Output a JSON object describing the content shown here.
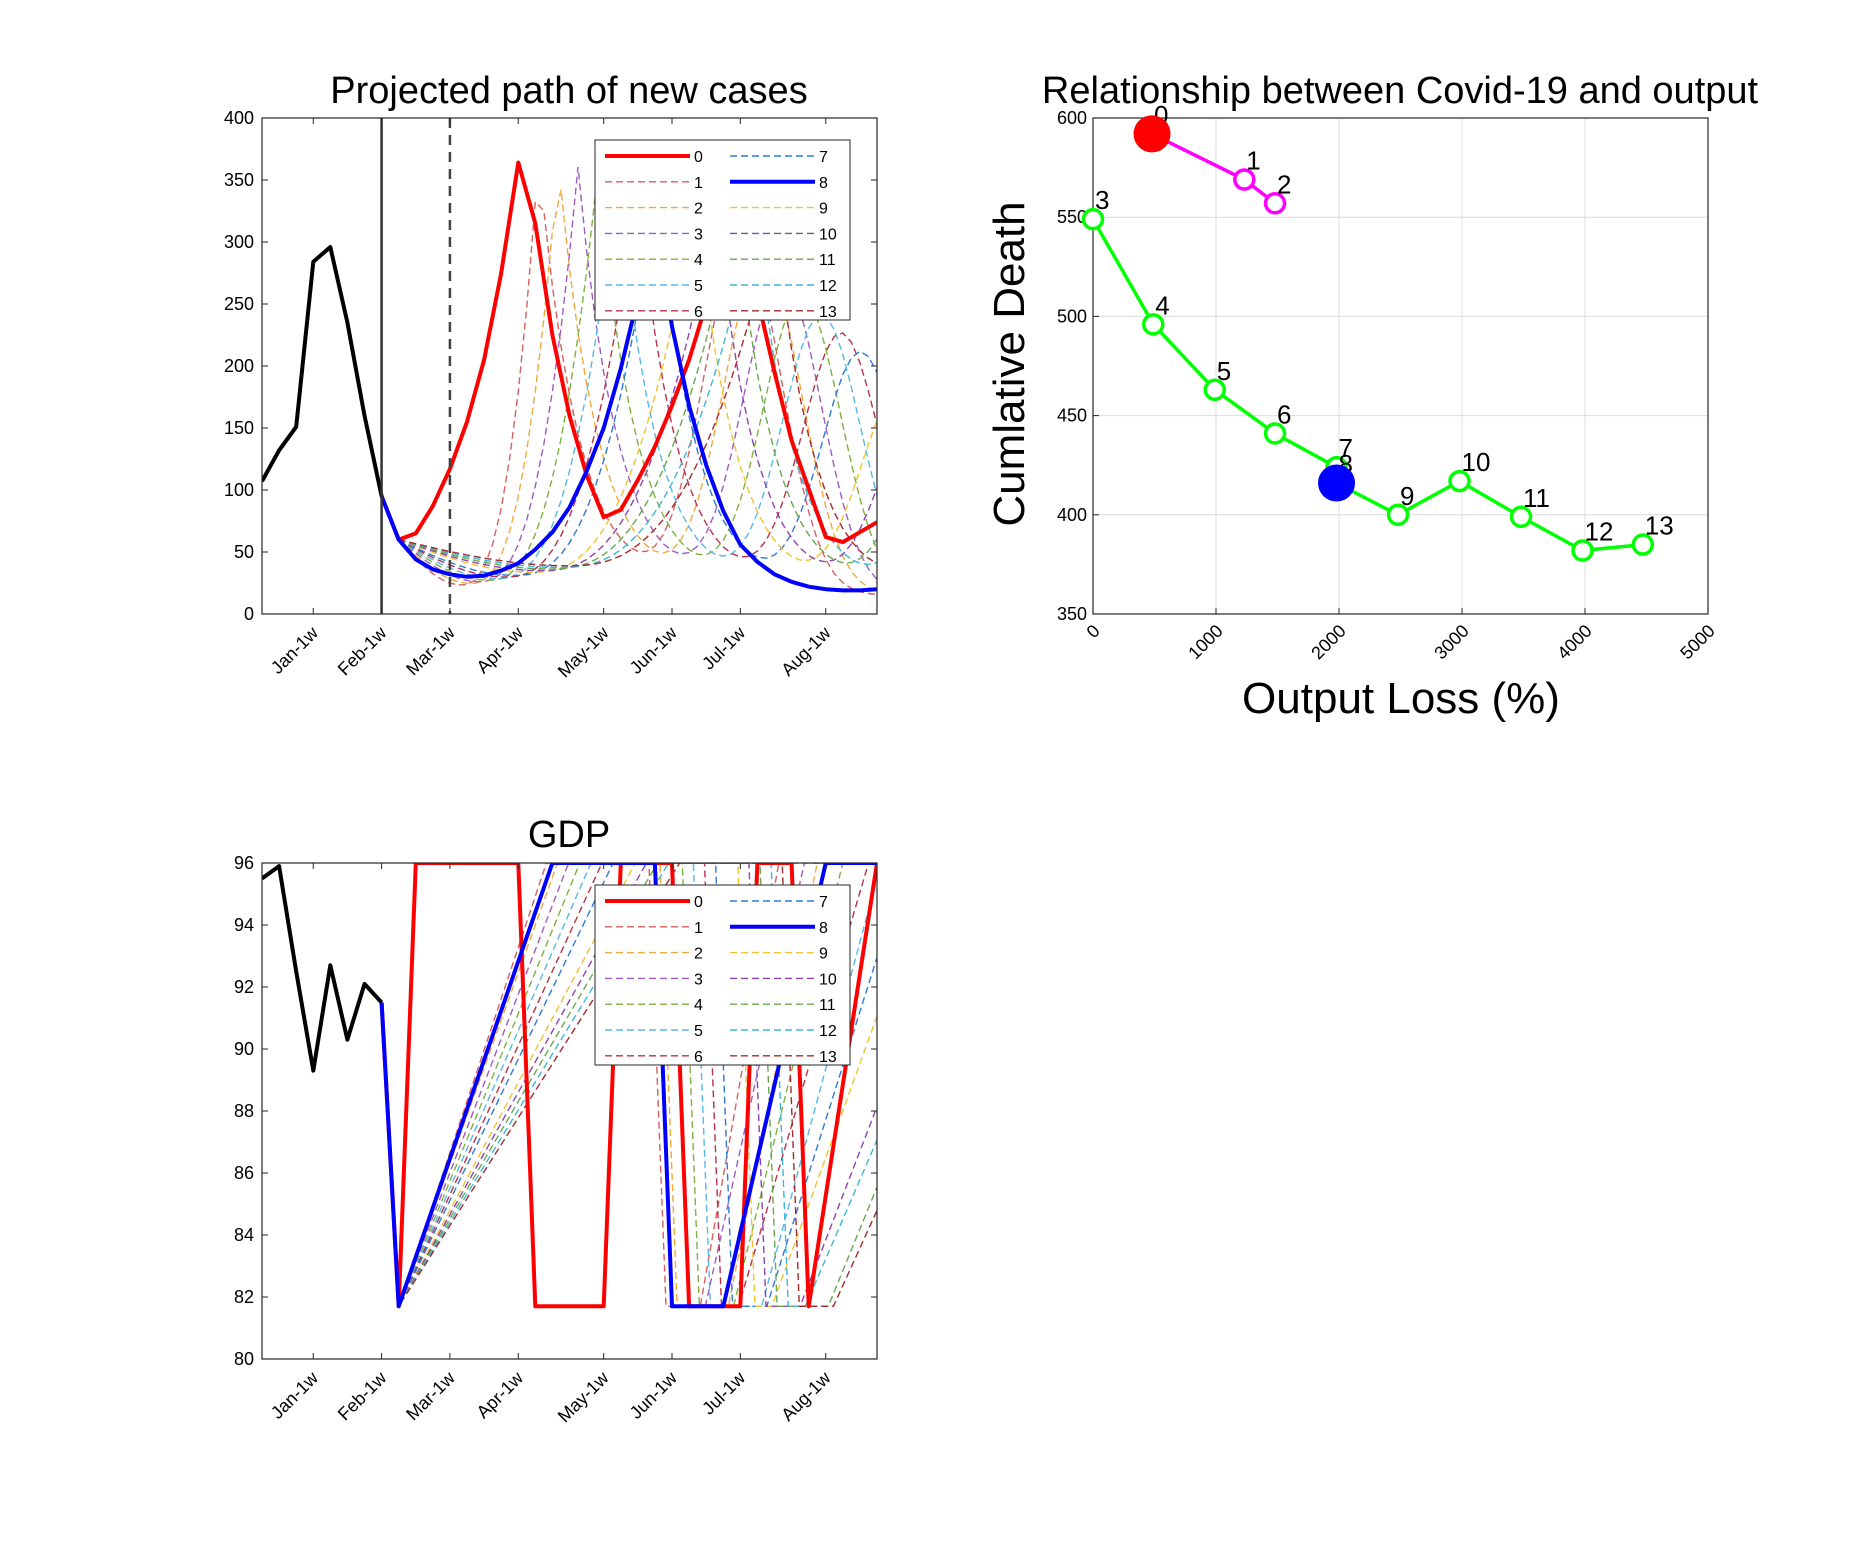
{
  "chart_data": [
    {
      "id": "cases",
      "type": "line",
      "title": "Projected path of new cases",
      "xlabel": "",
      "ylabel": "",
      "xlim": [
        0,
        36
      ],
      "ylim": [
        0,
        400
      ],
      "yticks": [
        0,
        50,
        100,
        150,
        200,
        250,
        300,
        350,
        400
      ],
      "xtick_positions": [
        3,
        7,
        11,
        15,
        20,
        24,
        28,
        33
      ],
      "xtick_labels": [
        "Jan-1w",
        "Feb-1w",
        "Mar-1w",
        "Apr-1w",
        "May-1w",
        "Jun-1w",
        "Jul-1w",
        "Aug-1w"
      ],
      "vlines": [
        {
          "x": 7,
          "style": "solid"
        },
        {
          "x": 11,
          "style": "dashed"
        }
      ],
      "legend": {
        "position": "top-right",
        "columns": 2,
        "labels": [
          "0",
          "1",
          "2",
          "3",
          "4",
          "5",
          "6",
          "7",
          "8",
          "9",
          "10",
          "11",
          "12",
          "13"
        ]
      },
      "history": {
        "name": "",
        "color": "#000000",
        "x": [
          0,
          1,
          2,
          3,
          4,
          5,
          6,
          7
        ],
        "y": [
          107,
          132,
          151,
          284,
          296,
          235,
          160,
          95
        ]
      },
      "series": [
        {
          "name": "0",
          "color": "#ff0000",
          "style": "solid",
          "width": 4,
          "x": [
            7,
            8,
            9,
            10,
            11,
            12,
            13,
            14,
            15,
            16,
            17,
            18,
            19,
            20,
            21,
            22,
            23,
            24,
            25,
            26,
            27,
            28,
            29,
            30,
            31,
            32,
            33,
            34,
            35,
            36
          ],
          "y": [
            95,
            60,
            65,
            87,
            117,
            155,
            205,
            275,
            364,
            315,
            225,
            160,
            112,
            78,
            84,
            108,
            135,
            168,
            205,
            250,
            290,
            345,
            255,
            195,
            140,
            101,
            62,
            58,
            66,
            74
          ]
        },
        {
          "name": "1",
          "color": "#d95f5f",
          "style": "dashed",
          "x": [],
          "y": []
        },
        {
          "name": "2",
          "color": "#f2a93b",
          "style": "dashed",
          "x": [],
          "y": []
        },
        {
          "name": "3",
          "color": "#a05cc0",
          "style": "dashed",
          "x": [],
          "y": []
        },
        {
          "name": "4",
          "color": "#7fb13f",
          "style": "dashed",
          "x": [],
          "y": []
        },
        {
          "name": "5",
          "color": "#55b9e8",
          "style": "dashed",
          "x": [],
          "y": []
        },
        {
          "name": "6",
          "color": "#b8324a",
          "style": "dashed",
          "x": [],
          "y": []
        },
        {
          "name": "7",
          "color": "#2d7bd6",
          "style": "dashed",
          "x": [],
          "y": []
        },
        {
          "name": "8",
          "color": "#0000ff",
          "style": "solid",
          "width": 4,
          "x": [
            7,
            8,
            9,
            10,
            11,
            12,
            13,
            14,
            15,
            16,
            17,
            18,
            19,
            20,
            21,
            22,
            23,
            24,
            25,
            26,
            27,
            28,
            29,
            30,
            31,
            32,
            33,
            34,
            35,
            36
          ],
          "y": [
            95,
            60,
            44,
            36,
            32,
            30,
            31,
            35,
            41,
            52,
            66,
            86,
            115,
            150,
            198,
            255,
            310,
            232,
            168,
            120,
            83,
            56,
            42,
            32,
            26,
            22,
            20,
            19,
            19,
            20
          ]
        },
        {
          "name": "9",
          "color": "#f2c230",
          "style": "dashed",
          "x": [],
          "y": []
        },
        {
          "name": "10",
          "color": "#8e44ad",
          "style": "dashed",
          "x": [],
          "y": []
        },
        {
          "name": "11",
          "color": "#6aa84f",
          "style": "dashed",
          "x": [],
          "y": []
        },
        {
          "name": "12",
          "color": "#3fb7d4",
          "style": "dashed",
          "x": [],
          "y": []
        },
        {
          "name": "13",
          "color": "#a52a2a",
          "style": "dashed",
          "x": [],
          "y": []
        }
      ]
    },
    {
      "id": "tradeoff",
      "type": "scatter",
      "title": "Relationship between Covid-19 and output",
      "xlabel": "Output Loss (%)",
      "ylabel": "Cumlative Death",
      "xlim": [
        0,
        5000
      ],
      "ylim": [
        350,
        600
      ],
      "xticks": [
        0,
        1000,
        2000,
        3000,
        4000,
        5000
      ],
      "yticks": [
        350,
        400,
        450,
        500,
        550,
        600
      ],
      "grid": true,
      "segments": [
        {
          "color": "#ff00ff",
          "labels": [
            "0",
            "1",
            "2"
          ],
          "x": [
            480,
            1230,
            1480
          ],
          "y": [
            592,
            569,
            557
          ]
        },
        {
          "color": "#00ff00",
          "labels": [
            "3",
            "4",
            "5",
            "6",
            "7",
            "8",
            "9",
            "10",
            "11",
            "12",
            "13"
          ],
          "x": [
            0,
            490,
            990,
            1480,
            1980,
            1980,
            2480,
            2980,
            3480,
            3980,
            4470
          ],
          "y": [
            549,
            496,
            463,
            441,
            424,
            416,
            400,
            417,
            399,
            382,
            385
          ]
        }
      ],
      "highlighted": [
        {
          "label": "0",
          "color": "#ff0000",
          "x": 480,
          "y": 592
        },
        {
          "label": "8",
          "color": "#0000ff",
          "x": 1980,
          "y": 416
        }
      ]
    },
    {
      "id": "gdp",
      "type": "line",
      "title": "GDP",
      "xlabel": "",
      "ylabel": "",
      "xlim": [
        0,
        36
      ],
      "ylim": [
        80,
        96
      ],
      "yticks": [
        80,
        82,
        84,
        86,
        88,
        90,
        92,
        94,
        96
      ],
      "xtick_positions": [
        3,
        7,
        11,
        15,
        20,
        24,
        28,
        33
      ],
      "xtick_labels": [
        "Jan-1w",
        "Feb-1w",
        "Mar-1w",
        "Apr-1w",
        "May-1w",
        "Jun-1w",
        "Jul-1w",
        "Aug-1w"
      ],
      "legend": {
        "position": "top-right",
        "columns": 2,
        "labels": [
          "0",
          "1",
          "2",
          "3",
          "4",
          "5",
          "6",
          "7",
          "8",
          "9",
          "10",
          "11",
          "12",
          "13"
        ]
      },
      "history": {
        "name": "",
        "color": "#000000",
        "x": [
          0,
          1,
          2,
          3,
          4,
          5,
          6,
          7
        ],
        "y": [
          95.5,
          95.9,
          92.5,
          89.3,
          92.7,
          90.3,
          92.1,
          91.5
        ]
      },
      "series": [
        {
          "name": "0",
          "color": "#ff0000",
          "style": "solid",
          "width": 4,
          "x": [
            7,
            8,
            9,
            15,
            16,
            20,
            21,
            24,
            25,
            28,
            29,
            31,
            32,
            36
          ],
          "y": [
            91.5,
            81.7,
            96,
            96,
            81.7,
            81.7,
            96,
            96,
            81.7,
            81.7,
            96,
            96,
            81.7,
            96
          ]
        },
        {
          "name": "1",
          "color": "#d95f5f",
          "style": "dashed",
          "x": [],
          "y": []
        },
        {
          "name": "2",
          "color": "#f2a93b",
          "style": "dashed",
          "x": [],
          "y": []
        },
        {
          "name": "3",
          "color": "#a05cc0",
          "style": "dashed",
          "x": [],
          "y": []
        },
        {
          "name": "4",
          "color": "#7fb13f",
          "style": "dashed",
          "x": [],
          "y": []
        },
        {
          "name": "5",
          "color": "#55b9e8",
          "style": "dashed",
          "x": [],
          "y": []
        },
        {
          "name": "6",
          "color": "#b8324a",
          "style": "dashed",
          "x": [],
          "y": []
        },
        {
          "name": "7",
          "color": "#2d7bd6",
          "style": "dashed",
          "x": [],
          "y": []
        },
        {
          "name": "8",
          "color": "#0000ff",
          "style": "solid",
          "width": 4,
          "x": [
            7,
            8,
            17,
            23,
            24,
            27,
            33,
            36
          ],
          "y": [
            91.5,
            81.7,
            96,
            96,
            81.7,
            81.7,
            96,
            96
          ]
        },
        {
          "name": "9",
          "color": "#f2c230",
          "style": "dashed",
          "x": [],
          "y": []
        },
        {
          "name": "10",
          "color": "#8e44ad",
          "style": "dashed",
          "x": [],
          "y": []
        },
        {
          "name": "11",
          "color": "#6aa84f",
          "style": "dashed",
          "x": [],
          "y": []
        },
        {
          "name": "12",
          "color": "#3fb7d4",
          "style": "dashed",
          "x": [],
          "y": []
        },
        {
          "name": "13",
          "color": "#a52a2a",
          "style": "dashed",
          "x": [],
          "y": []
        }
      ]
    }
  ]
}
